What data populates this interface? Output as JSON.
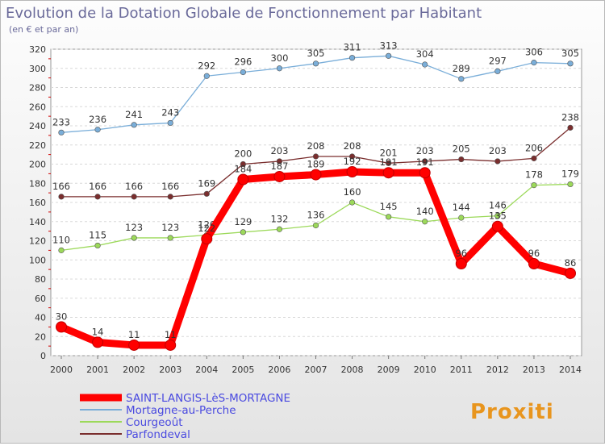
{
  "chart_data": {
    "type": "line",
    "title": "Evolution de la Dotation Globale de Fonctionnement par Habitant",
    "subtitle": "(en € et par an)",
    "x": [
      "2000",
      "2001",
      "2002",
      "2003",
      "2004",
      "2005",
      "2006",
      "2007",
      "2008",
      "2009",
      "2010",
      "2011",
      "2012",
      "2013",
      "2014"
    ],
    "y_ticks": [
      0,
      20,
      40,
      60,
      80,
      100,
      120,
      140,
      160,
      180,
      200,
      220,
      240,
      260,
      280,
      300,
      320
    ],
    "ylim": [
      0,
      320
    ],
    "grid": true,
    "legend_position": "bottom-left",
    "series": [
      {
        "name": "Courgeoût",
        "color": "#9cd95a",
        "values": [
          110,
          115,
          123,
          123,
          126,
          129,
          132,
          136,
          160,
          145,
          140,
          144,
          146,
          178,
          179
        ]
      },
      {
        "name": "Mortagne-au-Perche",
        "color": "#7aaed9",
        "values": [
          233,
          236,
          241,
          243,
          292,
          296,
          300,
          305,
          311,
          313,
          304,
          289,
          297,
          306,
          305
        ]
      },
      {
        "name": "Parfondeval",
        "color": "#7a2e2e",
        "values": [
          166,
          166,
          166,
          166,
          169,
          200,
          203,
          208,
          208,
          201,
          203,
          205,
          203,
          206,
          238
        ]
      },
      {
        "name": "SAINT-LANGIS-LèS-MORTAGNE",
        "color": "#ff0000",
        "values": [
          30,
          14,
          11,
          11,
          122,
          184,
          187,
          189,
          192,
          191,
          191,
          96,
          135,
          96,
          86
        ]
      }
    ],
    "legend_order": [
      "SAINT-LANGIS-LèS-MORTAGNE",
      "Mortagne-au-Perche",
      "Courgeoût",
      "Parfondeval"
    ]
  },
  "logo": {
    "text": "Proxiti"
  }
}
